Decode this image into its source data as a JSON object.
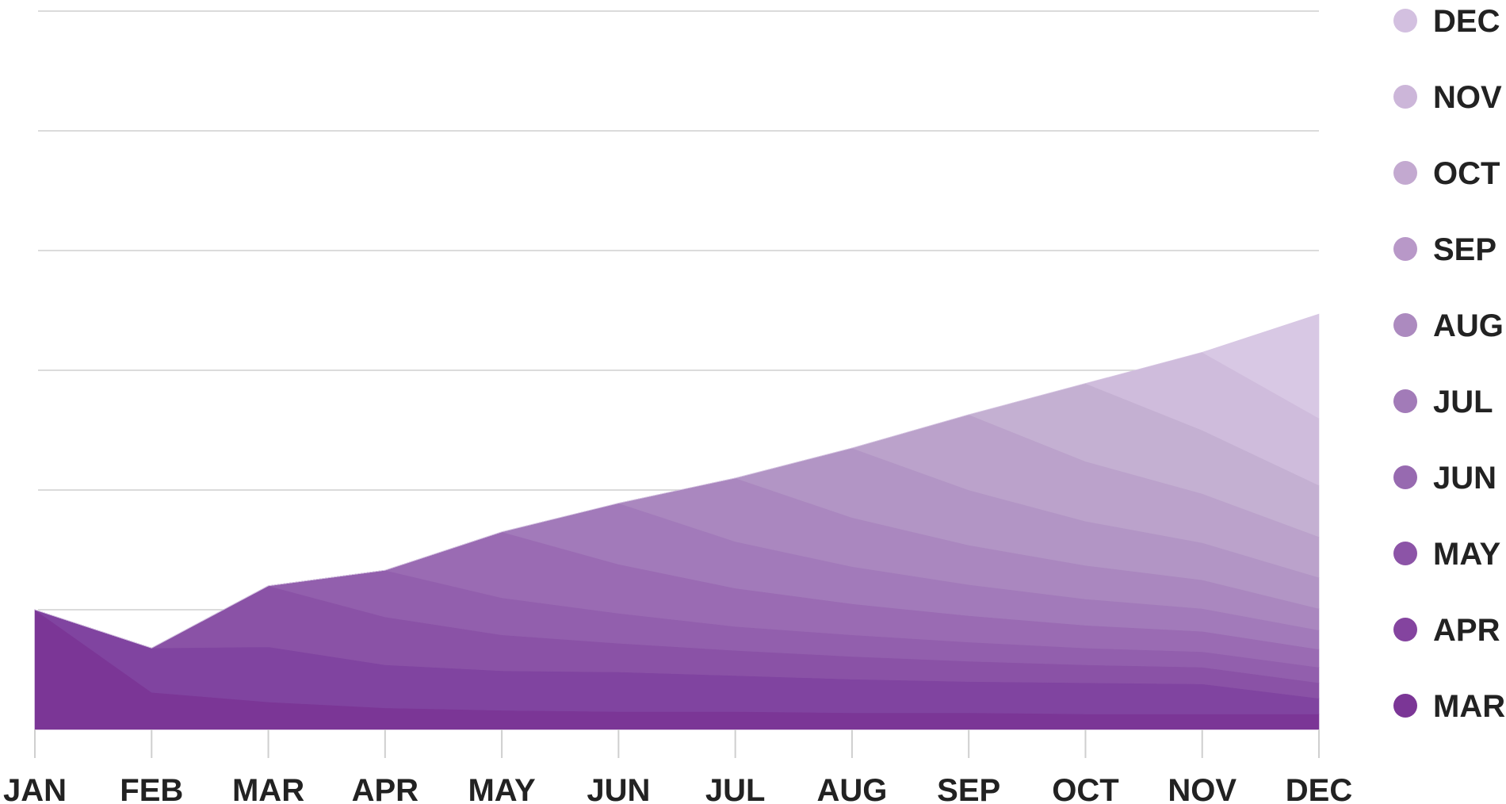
{
  "chart_data": {
    "type": "area",
    "stacked": true,
    "title": "",
    "xlabel": "",
    "ylabel": "",
    "ylim": [
      0,
      60
    ],
    "grid": true,
    "y_tick_labels_shown": false,
    "legend_position": "right",
    "categories": [
      "JAN",
      "FEB",
      "MAR",
      "APR",
      "MAY",
      "JUN",
      "JUL",
      "AUG",
      "SEP",
      "OCT",
      "NOV",
      "DEC"
    ],
    "series": [
      {
        "name": "MAR",
        "color": "#7b3696",
        "values": [
          10.0,
          3.1,
          2.3,
          1.8,
          1.6,
          1.5,
          1.5,
          1.4,
          1.4,
          1.3,
          1.3,
          1.3
        ]
      },
      {
        "name": "APR",
        "color": "#8044a0",
        "values": [
          0.0,
          3.7,
          4.6,
          3.6,
          3.3,
          3.3,
          3.0,
          2.8,
          2.6,
          2.6,
          2.5,
          1.3
        ]
      },
      {
        "name": "MAY",
        "color": "#8a52a6",
        "values": [
          0.0,
          0.0,
          5.1,
          4.0,
          3.0,
          2.4,
          2.1,
          1.9,
          1.7,
          1.5,
          1.4,
          1.3
        ]
      },
      {
        "name": "JUN",
        "color": "#925fad",
        "values": [
          0.0,
          0.0,
          0.0,
          3.9,
          3.1,
          2.5,
          2.0,
          1.8,
          1.6,
          1.4,
          1.3,
          1.3
        ]
      },
      {
        "name": "JUL",
        "color": "#9a6bb3",
        "values": [
          0.0,
          0.0,
          0.0,
          0.0,
          5.5,
          4.1,
          3.2,
          2.6,
          2.2,
          1.9,
          1.7,
          1.5
        ]
      },
      {
        "name": "AUG",
        "color": "#a27aba",
        "values": [
          0.0,
          0.0,
          0.0,
          0.0,
          0.0,
          5.1,
          3.9,
          3.1,
          2.6,
          2.2,
          1.9,
          1.6
        ]
      },
      {
        "name": "SEP",
        "color": "#aa87bf",
        "values": [
          0.0,
          0.0,
          0.0,
          0.0,
          0.0,
          0.0,
          5.3,
          4.1,
          3.3,
          2.8,
          2.4,
          1.8
        ]
      },
      {
        "name": "OCT",
        "color": "#b295c5",
        "values": [
          0.0,
          0.0,
          0.0,
          0.0,
          0.0,
          0.0,
          0.0,
          5.8,
          4.6,
          3.7,
          3.1,
          2.6
        ]
      },
      {
        "name": "NOV",
        "color": "#bba2cb",
        "values": [
          0.0,
          0.0,
          0.0,
          0.0,
          0.0,
          0.0,
          0.0,
          0.0,
          6.3,
          5.0,
          4.1,
          3.4
        ]
      },
      {
        "name": "DEC",
        "color": "#c4b0d2",
        "values": [
          0.0,
          0.0,
          0.0,
          0.0,
          0.0,
          0.0,
          0.0,
          0.0,
          0.0,
          6.5,
          5.3,
          4.3
        ]
      },
      {
        "name": "DEC",
        "color": "#cfbcdc",
        "values": [
          0.0,
          0.0,
          0.0,
          0.0,
          0.0,
          0.0,
          0.0,
          0.0,
          0.0,
          0.0,
          6.5,
          5.6
        ]
      },
      {
        "name": "NOV",
        "color": "#d8c8e4",
        "values": [
          0.0,
          0.0,
          0.0,
          0.0,
          0.0,
          0.0,
          0.0,
          0.0,
          0.0,
          0.0,
          0.0,
          8.7
        ]
      }
    ],
    "legend": [
      {
        "label": "DEC",
        "color": "#d3c0e0"
      },
      {
        "label": "NOV",
        "color": "#ccb6d9"
      },
      {
        "label": "OCT",
        "color": "#c3a9d0"
      },
      {
        "label": "SEP",
        "color": "#b898c8"
      },
      {
        "label": "AUG",
        "color": "#ac8abf"
      },
      {
        "label": "JUL",
        "color": "#a27bb8"
      },
      {
        "label": "JUN",
        "color": "#976ab0"
      },
      {
        "label": "MAY",
        "color": "#8c54a7"
      },
      {
        "label": "APR",
        "color": "#84449f"
      },
      {
        "label": "MAR",
        "color": "#7b3696"
      }
    ]
  }
}
